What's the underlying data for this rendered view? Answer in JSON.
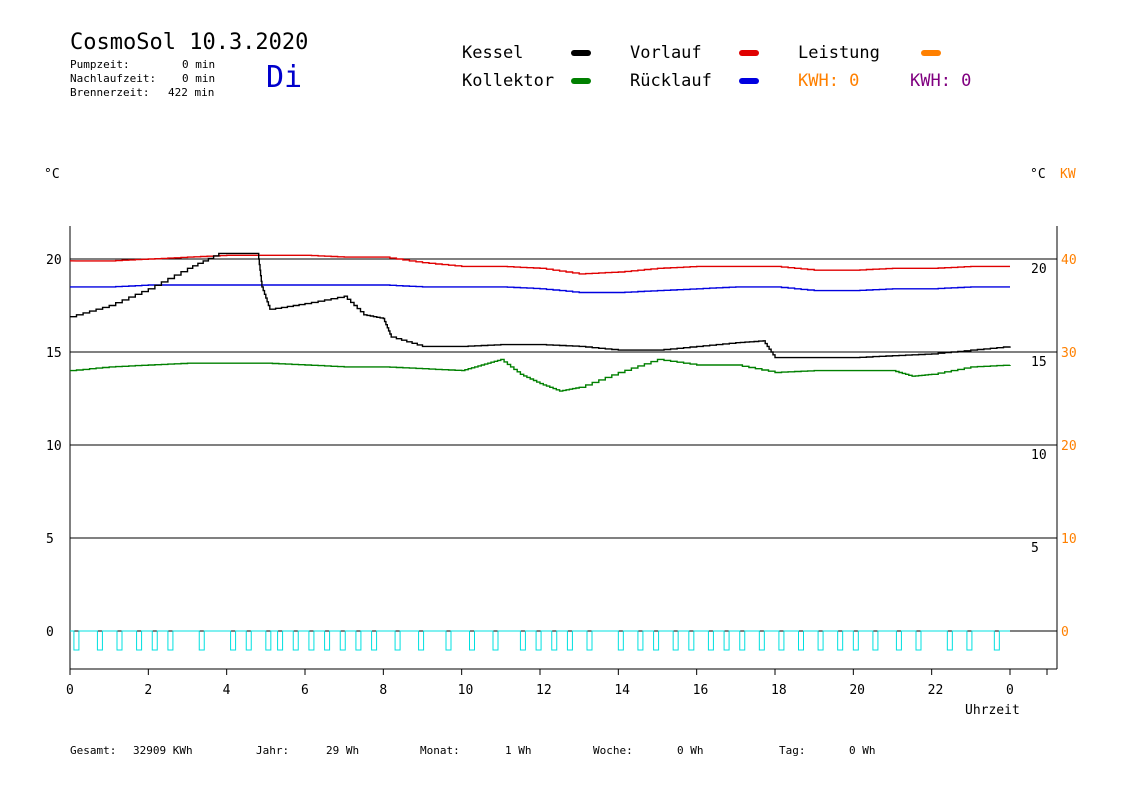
{
  "header": {
    "title": "CosmoSol 10.3.2020",
    "weekday": "Di",
    "pumpzeit": {
      "label": "Pumpzeit:",
      "value": "0 min"
    },
    "nachlaufzeit": {
      "label": "Nachlaufzeit:",
      "value": "0 min"
    },
    "brennerzeit": {
      "label": "Brennerzeit:",
      "value": "422 min"
    }
  },
  "legend": {
    "kessel": {
      "label": "Kessel",
      "color": "#000000"
    },
    "kollektor": {
      "label": "Kollektor",
      "color": "#008000"
    },
    "vorlauf": {
      "label": "Vorlauf",
      "color": "#e00000"
    },
    "ruecklauf": {
      "label": "Rücklauf",
      "color": "#0000e0"
    },
    "leistung": {
      "label": "Leistung",
      "color": "#ff8000"
    },
    "kwh_orange": "KWH: 0",
    "kwh_purple": "KWH: 0",
    "orange_color": "#ff8000",
    "purple_color": "#800080",
    "pump_color": "#00e0e0"
  },
  "chart_data": {
    "type": "line",
    "xlabel": "Uhrzeit",
    "left_axis_unit": "°C",
    "right_axis_unit": "°C",
    "right_axis2_unit": "KW",
    "xlim": [
      0,
      24
    ],
    "ylim_left": [
      -2,
      22
    ],
    "x_ticks": [
      "0",
      "2",
      "4",
      "6",
      "8",
      "10",
      "12",
      "14",
      "16",
      "18",
      "20",
      "22",
      "0"
    ],
    "y_ticks_left": [
      "0",
      "5",
      "10",
      "15",
      "20"
    ],
    "y_ticks_right_temp": [
      "5",
      "10",
      "15",
      "20"
    ],
    "y_ticks_right_kw": [
      "0",
      "10",
      "20",
      "30",
      "40"
    ],
    "grid": "horizontal",
    "series": [
      {
        "name": "Vorlauf",
        "color": "#e00000",
        "x": [
          0,
          1,
          2,
          3,
          4,
          5,
          6,
          7,
          8,
          9,
          10,
          11,
          12,
          13,
          14,
          15,
          16,
          17,
          18,
          19,
          20,
          21,
          22,
          23,
          24
        ],
        "y": [
          19.9,
          19.9,
          20.0,
          20.1,
          20.2,
          20.2,
          20.2,
          20.1,
          20.1,
          19.8,
          19.6,
          19.6,
          19.5,
          19.2,
          19.3,
          19.5,
          19.6,
          19.6,
          19.6,
          19.4,
          19.4,
          19.5,
          19.5,
          19.6,
          19.6
        ]
      },
      {
        "name": "Rücklauf",
        "color": "#0000e0",
        "x": [
          0,
          1,
          2,
          3,
          4,
          5,
          6,
          7,
          8,
          9,
          10,
          11,
          12,
          13,
          14,
          15,
          16,
          17,
          18,
          19,
          20,
          21,
          22,
          23,
          24
        ],
        "y": [
          18.5,
          18.5,
          18.6,
          18.6,
          18.6,
          18.6,
          18.6,
          18.6,
          18.6,
          18.5,
          18.5,
          18.5,
          18.4,
          18.2,
          18.2,
          18.3,
          18.4,
          18.5,
          18.5,
          18.3,
          18.3,
          18.4,
          18.4,
          18.5,
          18.5
        ]
      },
      {
        "name": "Kessel",
        "color": "#000000",
        "x": [
          0,
          1,
          2,
          3,
          3.8,
          4.8,
          4.9,
          5.1,
          6,
          7,
          7.5,
          8,
          8.2,
          9,
          10,
          11,
          12,
          13,
          14,
          15,
          16,
          17,
          17.7,
          18,
          19,
          20,
          21,
          22,
          23,
          24
        ],
        "y": [
          16.9,
          17.5,
          18.4,
          19.5,
          20.3,
          20.3,
          18.5,
          17.3,
          17.6,
          18.0,
          17.0,
          16.8,
          15.8,
          15.3,
          15.3,
          15.4,
          15.4,
          15.3,
          15.1,
          15.1,
          15.3,
          15.5,
          15.6,
          14.7,
          14.7,
          14.7,
          14.8,
          14.9,
          15.1,
          15.3
        ]
      },
      {
        "name": "Kollektor",
        "color": "#008000",
        "x": [
          0,
          1,
          2,
          3,
          4,
          5,
          6,
          7,
          8,
          9,
          10,
          10.5,
          11,
          11.5,
          12,
          12.5,
          13,
          14,
          15,
          16,
          17,
          18,
          19,
          20,
          21,
          21.5,
          22,
          23,
          24
        ],
        "y": [
          14.0,
          14.2,
          14.3,
          14.4,
          14.4,
          14.4,
          14.3,
          14.2,
          14.2,
          14.1,
          14.0,
          14.3,
          14.6,
          13.8,
          13.3,
          12.9,
          13.1,
          13.9,
          14.6,
          14.3,
          14.3,
          13.9,
          14.0,
          14.0,
          14.0,
          13.7,
          13.8,
          14.2,
          14.3
        ]
      }
    ],
    "pump_on_start_x": [
      0.1,
      0.7,
      1.2,
      1.7,
      2.1,
      2.5,
      3.3,
      4.1,
      4.5,
      5.0,
      5.3,
      5.7,
      6.1,
      6.5,
      6.9,
      7.3,
      7.7,
      8.3,
      8.9,
      9.6,
      10.2,
      10.8,
      11.5,
      11.9,
      12.3,
      12.7,
      13.2,
      14.0,
      14.5,
      14.9,
      15.4,
      15.8,
      16.3,
      16.7,
      17.1,
      17.6,
      18.1,
      18.6,
      19.1,
      19.6,
      20.0,
      20.5,
      21.1,
      21.6,
      22.4,
      22.9,
      23.6
    ]
  },
  "footer": {
    "gesamt": {
      "label": "Gesamt:",
      "value": "32909 KWh"
    },
    "jahr": {
      "label": "Jahr:",
      "value": "29 Wh"
    },
    "monat": {
      "label": "Monat:",
      "value": "1 Wh"
    },
    "woche": {
      "label": "Woche:",
      "value": "0 Wh"
    },
    "tag": {
      "label": "Tag:",
      "value": "0 Wh"
    }
  }
}
